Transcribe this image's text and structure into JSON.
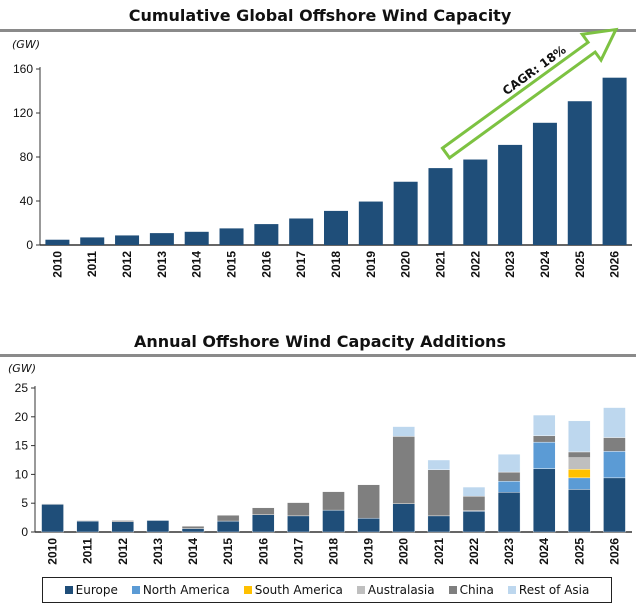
{
  "chart_data": [
    {
      "type": "bar",
      "title": "Cumulative Global Offshore Wind Capacity",
      "ylabel": "(GW)",
      "xlabel": "",
      "ylim": [
        0,
        160
      ],
      "yticks": [
        0,
        40,
        80,
        120,
        160
      ],
      "categories": [
        "2010",
        "2011",
        "2012",
        "2013",
        "2014",
        "2015",
        "2016",
        "2017",
        "2018",
        "2019",
        "2020",
        "2021",
        "2022",
        "2023",
        "2024",
        "2025",
        "2026"
      ],
      "values": [
        4.8,
        6.9,
        8.7,
        10.8,
        12.0,
        15.1,
        19.0,
        24.1,
        31.0,
        39.5,
        57.5,
        69.9,
        77.7,
        91.0,
        111.1,
        130.7,
        152.1
      ],
      "color": "#1F4E79",
      "annotation": "CAGR: 18%",
      "annotation_color": "#7DC242",
      "grid": false
    },
    {
      "type": "bar",
      "stacked": true,
      "title": "Annual Offshore Wind Capacity Additions",
      "ylabel": "(GW)",
      "xlabel": "",
      "ylim": [
        0,
        25
      ],
      "yticks": [
        0,
        5,
        10,
        15,
        20,
        25
      ],
      "categories": [
        "2010",
        "2011",
        "2012",
        "2013",
        "2014",
        "2015",
        "2016",
        "2017",
        "2018",
        "2019",
        "2020",
        "2021",
        "2022",
        "2023",
        "2024",
        "2025",
        "2026"
      ],
      "series": [
        {
          "name": "Europe",
          "color": "#1F4E79",
          "values": [
            4.8,
            1.9,
            1.8,
            2.0,
            0.6,
            1.9,
            3.0,
            2.8,
            3.8,
            2.4,
            4.9,
            2.8,
            3.6,
            6.9,
            11.0,
            7.4,
            9.4
          ]
        },
        {
          "name": "North America",
          "color": "#5B9BD5",
          "values": [
            0,
            0,
            0,
            0,
            0,
            0,
            0,
            0,
            0,
            0,
            0,
            0,
            0.1,
            1.9,
            4.6,
            2.0,
            4.6
          ]
        },
        {
          "name": "South America",
          "color": "#FFC000",
          "values": [
            0,
            0,
            0,
            0,
            0,
            0,
            0,
            0,
            0,
            0,
            0,
            0,
            0,
            0,
            0,
            1.5,
            0
          ]
        },
        {
          "name": "Australasia",
          "color": "#BFBFBF",
          "values": [
            0,
            0,
            0,
            0,
            0,
            0,
            0,
            0,
            0,
            0,
            0,
            0,
            0,
            0,
            0,
            2.0,
            0
          ]
        },
        {
          "name": "China",
          "color": "#7F7F7F",
          "values": [
            0.1,
            0.1,
            0.2,
            0,
            0.4,
            1.0,
            1.2,
            2.3,
            3.2,
            5.8,
            11.7,
            8.0,
            2.5,
            1.6,
            1.1,
            1.0,
            2.4
          ]
        },
        {
          "name": "Rest of Asia",
          "color": "#BDD7EE",
          "values": [
            0,
            0,
            0,
            0,
            0,
            0,
            0,
            0,
            0,
            0,
            1.7,
            1.7,
            1.6,
            3.1,
            3.6,
            5.4,
            5.2
          ]
        }
      ],
      "legend": "bottom",
      "grid": false
    }
  ]
}
